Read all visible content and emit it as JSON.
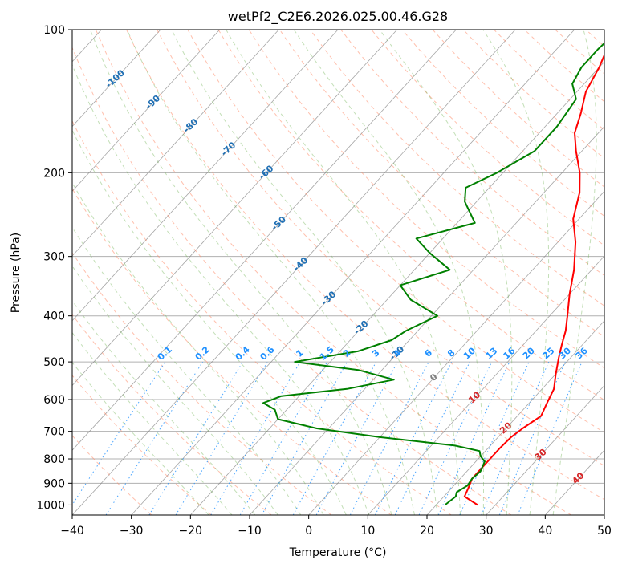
{
  "chart_data": {
    "type": "line",
    "title": "wetPf2_C2E6.2026.025.00.46.G28",
    "xlabel": "Temperature (°C)",
    "ylabel": "Pressure (hPa)",
    "xlim": [
      -40,
      50
    ],
    "ylim": [
      1050,
      100
    ],
    "y_scale": "log",
    "x_ticks": [
      -40,
      -30,
      -20,
      -10,
      0,
      10,
      20,
      30,
      40,
      50
    ],
    "x_tick_labels": [
      "−40",
      "−30",
      "−20",
      "−10",
      "0",
      "10",
      "20",
      "30",
      "40",
      "50"
    ],
    "y_ticks": [
      1000,
      900,
      800,
      700,
      600,
      500,
      400,
      300,
      200,
      100
    ],
    "y_tick_labels": [
      "1000",
      "900",
      "800",
      "700",
      "600",
      "500",
      "400",
      "300",
      "200",
      "100"
    ],
    "grid": true,
    "series": [
      {
        "role": "temperature",
        "color": "#ff0000",
        "points": [
          [
            27.0,
            1000
          ],
          [
            23.5,
            960
          ],
          [
            22.8,
            920
          ],
          [
            22.0,
            880
          ],
          [
            22.0,
            840
          ],
          [
            22.0,
            800
          ],
          [
            22.0,
            760
          ],
          [
            22.2,
            720
          ],
          [
            22.8,
            690
          ],
          [
            24.0,
            650
          ],
          [
            23.0,
            610
          ],
          [
            22.0,
            570
          ],
          [
            20.0,
            530
          ],
          [
            18.0,
            490
          ],
          [
            16.5,
            460
          ],
          [
            15.0,
            430
          ],
          [
            13.0,
            400
          ],
          [
            10.0,
            360
          ],
          [
            7.0,
            320
          ],
          [
            3.0,
            280
          ],
          [
            -1.0,
            250
          ],
          [
            -4.0,
            220
          ],
          [
            -7.0,
            200
          ],
          [
            -11.0,
            180
          ],
          [
            -14.0,
            165
          ],
          [
            -16.0,
            150
          ],
          [
            -18.5,
            135
          ],
          [
            -20.0,
            120
          ],
          [
            -21.5,
            110
          ],
          [
            -22.0,
            100
          ]
        ]
      },
      {
        "role": "dewpoint",
        "color": "#008000",
        "points": [
          [
            21.5,
            1000
          ],
          [
            22.0,
            960
          ],
          [
            21.5,
            940
          ],
          [
            22.3,
            910
          ],
          [
            22.0,
            880
          ],
          [
            22.3,
            850
          ],
          [
            21.5,
            810
          ],
          [
            20.0,
            790
          ],
          [
            19.0,
            770
          ],
          [
            14.0,
            750
          ],
          [
            0.0,
            720
          ],
          [
            -12.0,
            690
          ],
          [
            -20.0,
            660
          ],
          [
            -22.0,
            630
          ],
          [
            -25.0,
            610
          ],
          [
            -23.0,
            590
          ],
          [
            -13.0,
            570
          ],
          [
            -6.5,
            545
          ],
          [
            -14.0,
            520
          ],
          [
            -26.0,
            500
          ],
          [
            -17.0,
            475
          ],
          [
            -13.0,
            450
          ],
          [
            -12.0,
            430
          ],
          [
            -9.0,
            400
          ],
          [
            -16.0,
            370
          ],
          [
            -20.0,
            345
          ],
          [
            -14.0,
            320
          ],
          [
            -20.0,
            295
          ],
          [
            -24.5,
            275
          ],
          [
            -17.0,
            255
          ],
          [
            -22.0,
            230
          ],
          [
            -24.0,
            215
          ],
          [
            -21.0,
            200
          ],
          [
            -18.0,
            180
          ],
          [
            -18.0,
            160
          ],
          [
            -19.0,
            140
          ],
          [
            -22.0,
            130
          ],
          [
            -23.0,
            120
          ],
          [
            -23.0,
            110
          ],
          [
            -22.5,
            100
          ]
        ]
      }
    ],
    "dry_adiabat_labels": [
      "-100",
      "-90",
      "-80",
      "-70",
      "-60",
      "-50",
      "-40",
      "-30",
      "-20",
      "-10",
      "0",
      "10",
      "20",
      "30",
      "40"
    ],
    "mixing_ratio_labels": [
      "0.1",
      "0.2",
      "0.4",
      "0.6",
      "1",
      "1.5",
      "2",
      "3",
      "4",
      "6",
      "8",
      "10",
      "13",
      "16",
      "20",
      "25",
      "30",
      "36"
    ],
    "colors": {
      "isotherm": "#808080",
      "dry_adiabat": "#ff8c69",
      "moist_adiabat": "#6ab04c",
      "mixing_ratio": "#1e90ff",
      "label_blue": "#1f6fb4",
      "label_red": "#d62728",
      "label_gray": "#808080"
    }
  }
}
